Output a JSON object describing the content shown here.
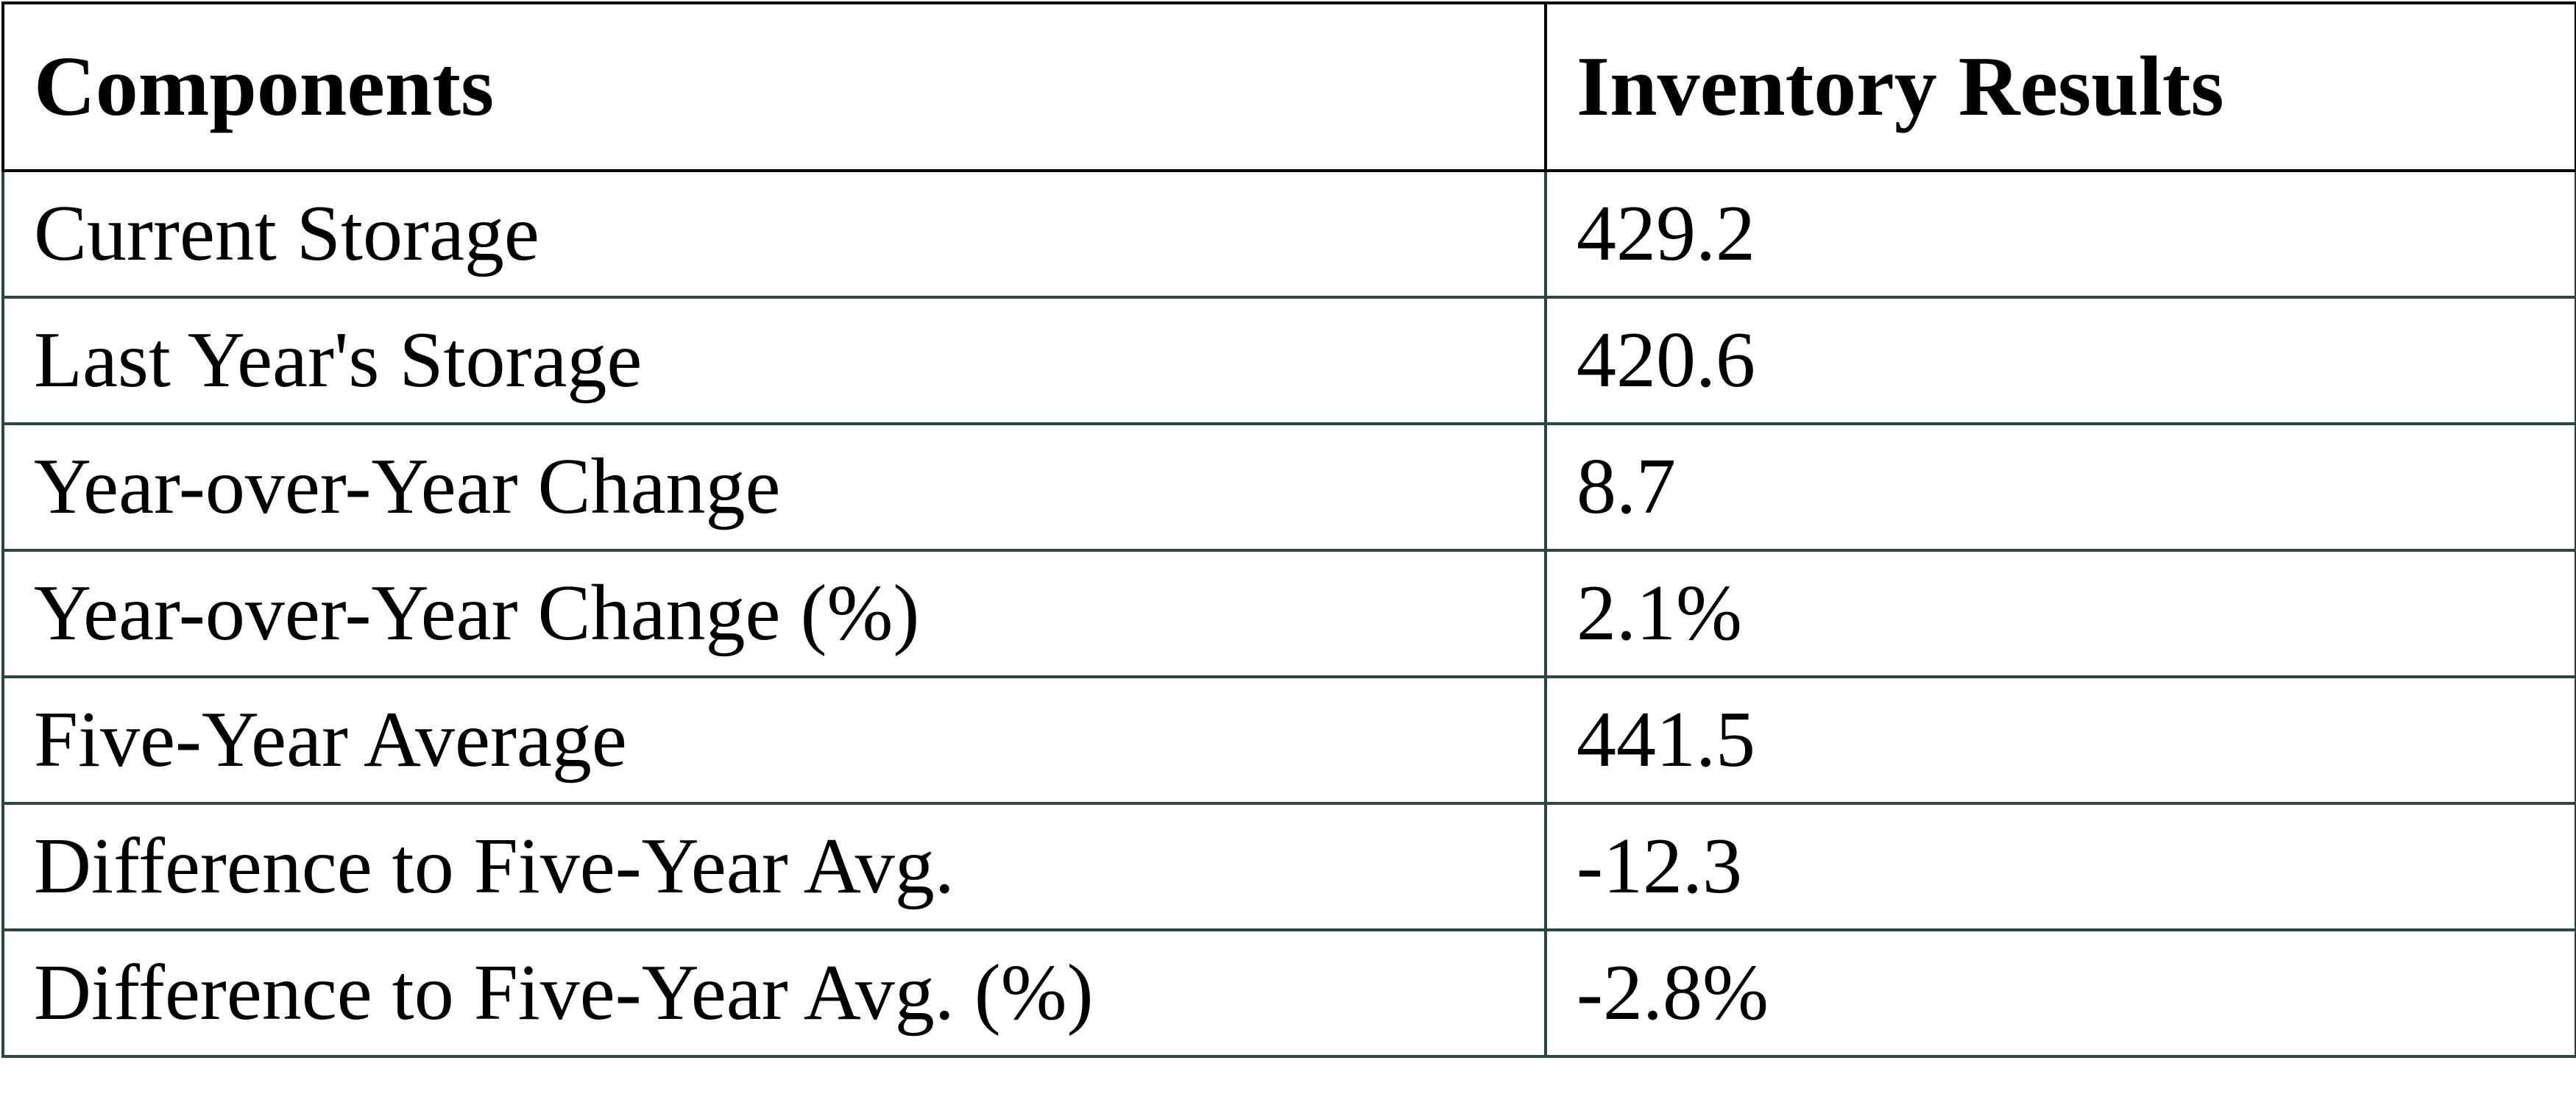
{
  "table": {
    "header": [
      "Components",
      "Inventory Results"
    ],
    "rows": [
      [
        "Current Storage",
        "429.2"
      ],
      [
        "Last Year's Storage",
        "420.6"
      ],
      [
        "Year-over-Year Change",
        "8.7"
      ],
      [
        "Year-over-Year Change (%)",
        "2.1%"
      ],
      [
        "Five-Year Average",
        "441.5"
      ],
      [
        "Difference to Five-Year Avg.",
        "-12.3"
      ],
      [
        "Difference to Five-Year Avg. (%)",
        "-2.8%"
      ]
    ]
  }
}
